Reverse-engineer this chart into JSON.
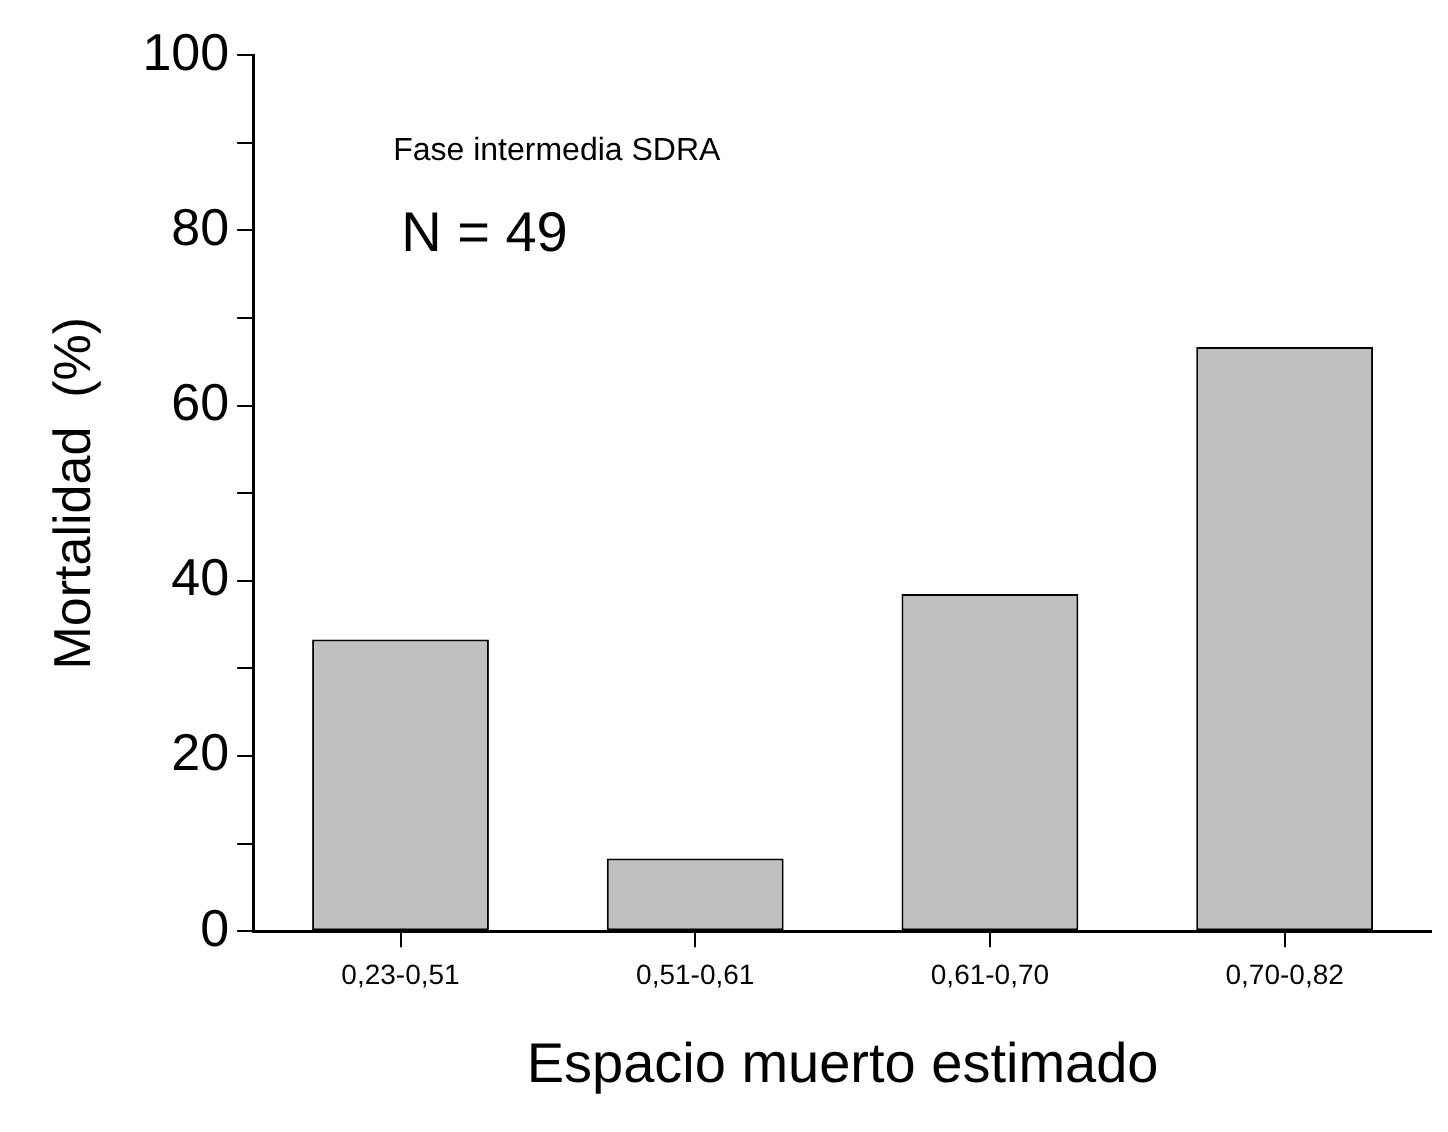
{
  "chart_data": {
    "type": "bar",
    "xlabel": "Espacio muerto estimado",
    "ylabel": "Mortalidad  (%)",
    "annotations": [
      "Fase intermedia SDRA",
      "N = 49"
    ],
    "categories": [
      "0,23-0,51",
      "0,51-0,61",
      "0,61-0,70",
      "0,70-0,82"
    ],
    "values": [
      33.3,
      8.3,
      38.5,
      66.7
    ],
    "color": "#c0c0c0",
    "ylim": [
      0,
      100
    ],
    "yticks": [
      0,
      {
        "value": 10,
        "label": null
      },
      20,
      {
        "value": 30,
        "label": null
      },
      40,
      {
        "value": 50,
        "label": null
      },
      60,
      {
        "value": 70,
        "label": null
      },
      80,
      {
        "value": 90,
        "label": null
      },
      100
    ]
  }
}
